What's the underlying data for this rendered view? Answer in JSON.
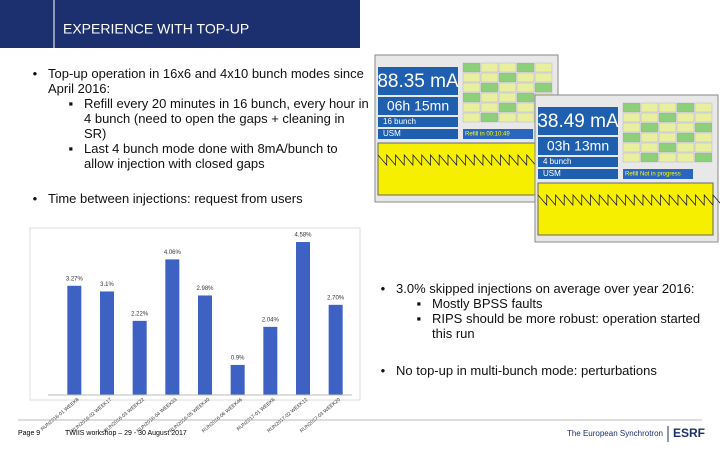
{
  "header": {
    "title": "EXPERIENCE WITH TOP-UP"
  },
  "bullets": [
    {
      "text": "Top-up operation in 16x6 and 4x10 bunch modes since April 2016:",
      "sub": [
        "Refill every 20 minutes in 16 bunch, every hour in 4 bunch (need to open the gaps + cleaning in SR)",
        "Last 4 bunch mode done with 8mA/bunch to allow injection with closed gaps"
      ]
    },
    {
      "text": "Time between injections: request from users",
      "sub": []
    }
  ],
  "right_bullets": [
    {
      "text": "3.0% skipped injections on average over year 2016:",
      "sub": [
        "Mostly BPSS faults",
        "RIPS should be more robust: operation started this run"
      ]
    },
    {
      "text": "No top-up in multi-bunch mode: perturbations",
      "sub": []
    }
  ],
  "screens": [
    {
      "current": "88.35 mA",
      "time": "06h 15mn",
      "mode": "16 bunch",
      "machine": "USM",
      "refill": "Refill in 00:10:49"
    },
    {
      "current": "38.49 mA",
      "time": "03h 13mn",
      "mode": "4 bunch",
      "machine": "USM",
      "refill": "Refill Not in progress"
    }
  ],
  "chart_data": {
    "type": "bar",
    "categories": [
      "RUN2016-01 WEEK8",
      "RUN2016-02 WEEK17",
      "RUN2016-03 WEEK22",
      "RUN2016-04 WEEK33",
      "RUN2016-05 WEEK40",
      "RUN2016-06 WEEK46",
      "RUN2017-01 WEEK6",
      "RUN2017-02 WEEK12",
      "RUN2017-03 WEEK20"
    ],
    "values": [
      3.27,
      3.1,
      2.22,
      4.06,
      2.98,
      0.9,
      2.04,
      4.58,
      2.7
    ],
    "value_labels": [
      "3.27%",
      "3.1%",
      "2.22%",
      "4.06%",
      "2.98%",
      "0.9%",
      "2.04%",
      "4.58%",
      "2.70%"
    ],
    "color": "#3d62c4",
    "ylim": [
      0,
      5
    ]
  },
  "footer": {
    "page": "Page 9",
    "event": "TWIIS workshop – 29 - 30 August 2017",
    "brand": "The European Synchrotron",
    "logo": "ESRF"
  }
}
